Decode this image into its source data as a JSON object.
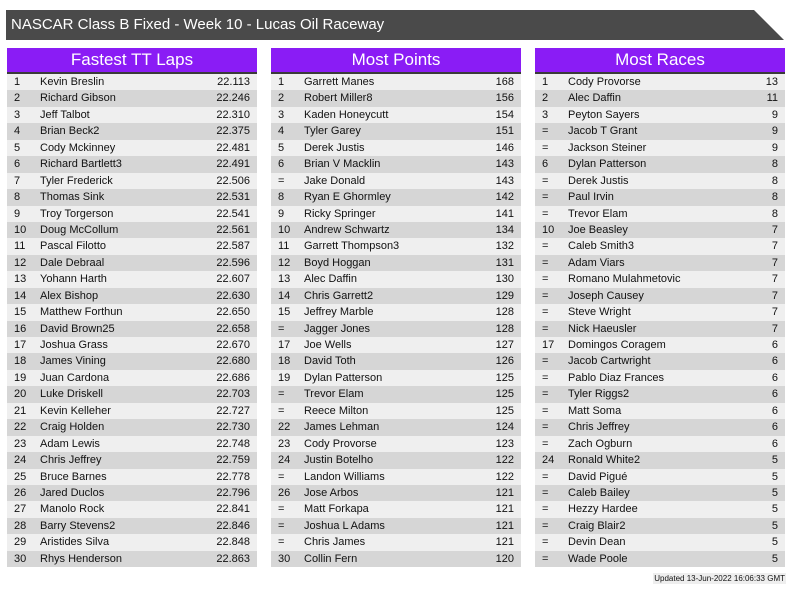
{
  "title": "NASCAR Class B Fixed - Week 10 - Lucas Oil Raceway",
  "footer": "Updated 13-Jun-2022 16:06:33 GMT",
  "colors": {
    "header": "#8a1cf5",
    "titlebar": "#4a4a4a"
  },
  "panels": [
    {
      "title": "Fastest TT Laps",
      "rows": [
        [
          "1",
          "Kevin Breslin",
          "22.113"
        ],
        [
          "2",
          "Richard Gibson",
          "22.246"
        ],
        [
          "3",
          "Jeff Talbot",
          "22.310"
        ],
        [
          "4",
          "Brian Beck2",
          "22.375"
        ],
        [
          "5",
          "Cody Mckinney",
          "22.481"
        ],
        [
          "6",
          "Richard Bartlett3",
          "22.491"
        ],
        [
          "7",
          "Tyler Frederick",
          "22.506"
        ],
        [
          "8",
          "Thomas Sink",
          "22.531"
        ],
        [
          "9",
          "Troy Torgerson",
          "22.541"
        ],
        [
          "10",
          "Doug McCollum",
          "22.561"
        ],
        [
          "11",
          "Pascal Filotto",
          "22.587"
        ],
        [
          "12",
          "Dale Debraal",
          "22.596"
        ],
        [
          "13",
          "Yohann Harth",
          "22.607"
        ],
        [
          "14",
          "Alex Bishop",
          "22.630"
        ],
        [
          "15",
          "Matthew Forthun",
          "22.650"
        ],
        [
          "16",
          "David Brown25",
          "22.658"
        ],
        [
          "17",
          "Joshua Grass",
          "22.670"
        ],
        [
          "18",
          "James Vining",
          "22.680"
        ],
        [
          "19",
          "Juan Cardona",
          "22.686"
        ],
        [
          "20",
          "Luke Driskell",
          "22.703"
        ],
        [
          "21",
          "Kevin Kelleher",
          "22.727"
        ],
        [
          "22",
          "Craig Holden",
          "22.730"
        ],
        [
          "23",
          "Adam Lewis",
          "22.748"
        ],
        [
          "24",
          "Chris Jeffrey",
          "22.759"
        ],
        [
          "25",
          "Bruce Barnes",
          "22.778"
        ],
        [
          "26",
          "Jared Duclos",
          "22.796"
        ],
        [
          "27",
          "Manolo Rock",
          "22.841"
        ],
        [
          "28",
          "Barry Stevens2",
          "22.846"
        ],
        [
          "29",
          "Aristides Silva",
          "22.848"
        ],
        [
          "30",
          "Rhys Henderson",
          "22.863"
        ]
      ]
    },
    {
      "title": "Most Points",
      "rows": [
        [
          "1",
          "Garrett Manes",
          "168"
        ],
        [
          "2",
          "Robert Miller8",
          "156"
        ],
        [
          "3",
          "Kaden Honeycutt",
          "154"
        ],
        [
          "4",
          "Tyler Garey",
          "151"
        ],
        [
          "5",
          "Derek Justis",
          "146"
        ],
        [
          "6",
          "Brian V Macklin",
          "143"
        ],
        [
          "=",
          "Jake Donald",
          "143"
        ],
        [
          "8",
          "Ryan E Ghormley",
          "142"
        ],
        [
          "9",
          "Ricky Springer",
          "141"
        ],
        [
          "10",
          "Andrew Schwartz",
          "134"
        ],
        [
          "11",
          "Garrett Thompson3",
          "132"
        ],
        [
          "12",
          "Boyd Hoggan",
          "131"
        ],
        [
          "13",
          "Alec Daffin",
          "130"
        ],
        [
          "14",
          "Chris Garrett2",
          "129"
        ],
        [
          "15",
          "Jeffrey Marble",
          "128"
        ],
        [
          "=",
          "Jagger Jones",
          "128"
        ],
        [
          "17",
          "Joe Wells",
          "127"
        ],
        [
          "18",
          "David Toth",
          "126"
        ],
        [
          "19",
          "Dylan Patterson",
          "125"
        ],
        [
          "=",
          "Trevor Elam",
          "125"
        ],
        [
          "=",
          "Reece Milton",
          "125"
        ],
        [
          "22",
          "James Lehman",
          "124"
        ],
        [
          "23",
          "Cody Provorse",
          "123"
        ],
        [
          "24",
          "Justin Botelho",
          "122"
        ],
        [
          "=",
          "Landon Williams",
          "122"
        ],
        [
          "26",
          "Jose Arbos",
          "121"
        ],
        [
          "=",
          "Matt Forkapa",
          "121"
        ],
        [
          "=",
          "Joshua L Adams",
          "121"
        ],
        [
          "=",
          "Chris James",
          "121"
        ],
        [
          "30",
          "Collin Fern",
          "120"
        ]
      ]
    },
    {
      "title": "Most Races",
      "rows": [
        [
          "1",
          "Cody Provorse",
          "13"
        ],
        [
          "2",
          "Alec Daffin",
          "11"
        ],
        [
          "3",
          "Peyton Sayers",
          "9"
        ],
        [
          "=",
          "Jacob T Grant",
          "9"
        ],
        [
          "=",
          "Jackson Steiner",
          "9"
        ],
        [
          "6",
          "Dylan Patterson",
          "8"
        ],
        [
          "=",
          "Derek Justis",
          "8"
        ],
        [
          "=",
          "Paul Irvin",
          "8"
        ],
        [
          "=",
          "Trevor Elam",
          "8"
        ],
        [
          "10",
          "Joe Beasley",
          "7"
        ],
        [
          "=",
          "Caleb Smith3",
          "7"
        ],
        [
          "=",
          "Adam Viars",
          "7"
        ],
        [
          "=",
          "Romano Mulahmetovic",
          "7"
        ],
        [
          "=",
          "Joseph Causey",
          "7"
        ],
        [
          "=",
          "Steve Wright",
          "7"
        ],
        [
          "=",
          "Nick Haeusler",
          "7"
        ],
        [
          "17",
          "Domingos Coragem",
          "6"
        ],
        [
          "=",
          "Jacob Cartwright",
          "6"
        ],
        [
          "=",
          "Pablo Diaz Frances",
          "6"
        ],
        [
          "=",
          "Tyler Riggs2",
          "6"
        ],
        [
          "=",
          "Matt Soma",
          "6"
        ],
        [
          "=",
          "Chris Jeffrey",
          "6"
        ],
        [
          "=",
          "Zach Ogburn",
          "6"
        ],
        [
          "24",
          "Ronald White2",
          "5"
        ],
        [
          "=",
          "David Pigué",
          "5"
        ],
        [
          "=",
          "Caleb Bailey",
          "5"
        ],
        [
          "=",
          "Hezzy Hardee",
          "5"
        ],
        [
          "=",
          "Craig Blair2",
          "5"
        ],
        [
          "=",
          "Devin Dean",
          "5"
        ],
        [
          "=",
          "Wade Poole",
          "5"
        ]
      ]
    }
  ]
}
